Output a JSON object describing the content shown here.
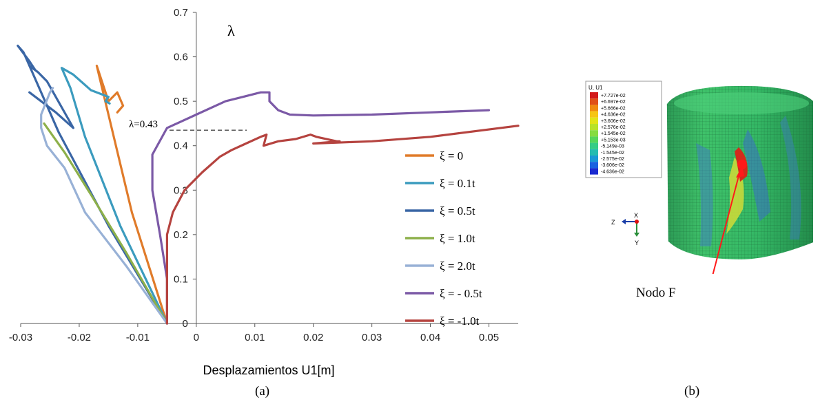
{
  "chart_data": {
    "type": "line",
    "title": "",
    "xlabel": "Desplazamientos U1[m]",
    "ylabel": "λ",
    "xlim": [
      -0.03,
      0.055
    ],
    "ylim": [
      0,
      0.7
    ],
    "xticks": [
      "-0.03",
      "-0.02",
      "-0.01",
      "0",
      "0.01",
      "0.02",
      "0.03",
      "0.04",
      "0.05"
    ],
    "xtick_values": [
      -0.03,
      -0.02,
      -0.01,
      0,
      0.01,
      0.02,
      0.03,
      0.04,
      0.05
    ],
    "yticks": [
      "0",
      "0.1",
      "0.2",
      "0.3",
      "0.4",
      "0.5",
      "0.6",
      "0.7"
    ],
    "ytick_values": [
      0,
      0.1,
      0.2,
      0.3,
      0.4,
      0.5,
      0.6,
      0.7
    ],
    "grid": false,
    "legend_position": "bottom-right",
    "annotation": {
      "text": "λ=0.43",
      "value": 0.435
    },
    "series": [
      {
        "name": "ξ = 0",
        "color": "#E07B2A",
        "points": [
          [
            -0.005,
            0
          ],
          [
            -0.011,
            0.25
          ],
          [
            -0.017,
            0.58
          ],
          [
            -0.015,
            0.5
          ],
          [
            -0.0135,
            0.52
          ],
          [
            -0.0125,
            0.49
          ],
          [
            -0.0135,
            0.475
          ]
        ]
      },
      {
        "name": "ξ = 0.1t",
        "color": "#3B9BBE",
        "points": [
          [
            -0.005,
            0
          ],
          [
            -0.013,
            0.22
          ],
          [
            -0.019,
            0.42
          ],
          [
            -0.0215,
            0.53
          ],
          [
            -0.023,
            0.575
          ],
          [
            -0.021,
            0.56
          ],
          [
            -0.018,
            0.525
          ],
          [
            -0.016,
            0.515
          ],
          [
            -0.015,
            0.51
          ],
          [
            -0.0155,
            0.5
          ],
          [
            -0.0148,
            0.495
          ]
        ]
      },
      {
        "name": "ξ = 0.5t",
        "color": "#3A66A5",
        "points": [
          [
            -0.005,
            0
          ],
          [
            -0.015,
            0.22
          ],
          [
            -0.0235,
            0.43
          ],
          [
            -0.0295,
            0.61
          ],
          [
            -0.0305,
            0.625
          ],
          [
            -0.0285,
            0.59
          ],
          [
            -0.0275,
            0.57
          ],
          [
            -0.0285,
            0.58
          ],
          [
            -0.027,
            0.565
          ],
          [
            -0.0255,
            0.545
          ],
          [
            -0.021,
            0.44
          ],
          [
            -0.024,
            0.475
          ],
          [
            -0.0285,
            0.52
          ]
        ]
      },
      {
        "name": "ξ = 1.0t",
        "color": "#8DB04A",
        "points": [
          [
            -0.005,
            0
          ],
          [
            -0.012,
            0.16
          ],
          [
            -0.018,
            0.29
          ],
          [
            -0.0225,
            0.385
          ],
          [
            -0.026,
            0.45
          ]
        ]
      },
      {
        "name": "ξ = 2.0t",
        "color": "#98B1D6",
        "points": [
          [
            -0.005,
            0
          ],
          [
            -0.012,
            0.13
          ],
          [
            -0.019,
            0.25
          ],
          [
            -0.0225,
            0.35
          ],
          [
            -0.0255,
            0.4
          ],
          [
            -0.0265,
            0.44
          ],
          [
            -0.0265,
            0.47
          ],
          [
            -0.025,
            0.52
          ],
          [
            -0.0245,
            0.53
          ]
        ]
      },
      {
        "name": "ξ = - 0.5t",
        "color": "#7B59A6",
        "points": [
          [
            -0.005,
            0
          ],
          [
            -0.005,
            0.1
          ],
          [
            -0.0062,
            0.2
          ],
          [
            -0.0075,
            0.3
          ],
          [
            -0.0075,
            0.38
          ],
          [
            -0.005,
            0.44
          ],
          [
            0,
            0.47
          ],
          [
            0.005,
            0.5
          ],
          [
            0.008,
            0.51
          ],
          [
            0.011,
            0.52
          ],
          [
            0.0125,
            0.52
          ],
          [
            0.0125,
            0.5
          ],
          [
            0.014,
            0.48
          ],
          [
            0.016,
            0.47
          ],
          [
            0.02,
            0.468
          ],
          [
            0.03,
            0.47
          ],
          [
            0.04,
            0.475
          ],
          [
            0.05,
            0.48
          ]
        ]
      },
      {
        "name": "ξ = -1.0t",
        "color": "#B5433F",
        "points": [
          [
            -0.005,
            0
          ],
          [
            -0.005,
            0.1
          ],
          [
            -0.005,
            0.2
          ],
          [
            -0.004,
            0.25
          ],
          [
            -0.002,
            0.3
          ],
          [
            0.001,
            0.34
          ],
          [
            0.004,
            0.375
          ],
          [
            0.006,
            0.39
          ],
          [
            0.0085,
            0.405
          ],
          [
            0.011,
            0.42
          ],
          [
            0.012,
            0.425
          ],
          [
            0.0115,
            0.4
          ],
          [
            0.014,
            0.41
          ],
          [
            0.017,
            0.415
          ],
          [
            0.0195,
            0.425
          ],
          [
            0.0205,
            0.42
          ],
          [
            0.024,
            0.41
          ],
          [
            0.0245,
            0.41
          ],
          [
            0.02,
            0.405
          ],
          [
            0.03,
            0.41
          ],
          [
            0.04,
            0.42
          ],
          [
            0.055,
            0.445
          ]
        ]
      }
    ]
  },
  "figure": {
    "colorbar_title": "U, U1",
    "colorbar_labels": [
      "+7.727e-02",
      "+6.697e-02",
      "+5.666e-02",
      "+4.636e-02",
      "+3.606e-02",
      "+2.576e-02",
      "+1.545e-02",
      "+5.153e-03",
      "-5.149e-03",
      "-1.545e-02",
      "-2.575e-02",
      "-3.606e-02",
      "-4.636e-02"
    ],
    "colorbar_colors": [
      "#d21a1a",
      "#e05018",
      "#f08a10",
      "#f6c514",
      "#e2e418",
      "#b8e22a",
      "#86dc40",
      "#56d65a",
      "#36cc86",
      "#24bcb0",
      "#1a98d6",
      "#1a62e0",
      "#1a2ad0"
    ],
    "axis_labels": [
      "X",
      "Y",
      "Z"
    ],
    "node_label": "Nodo F"
  },
  "captions": {
    "a": "(a)",
    "b": "(b)"
  }
}
